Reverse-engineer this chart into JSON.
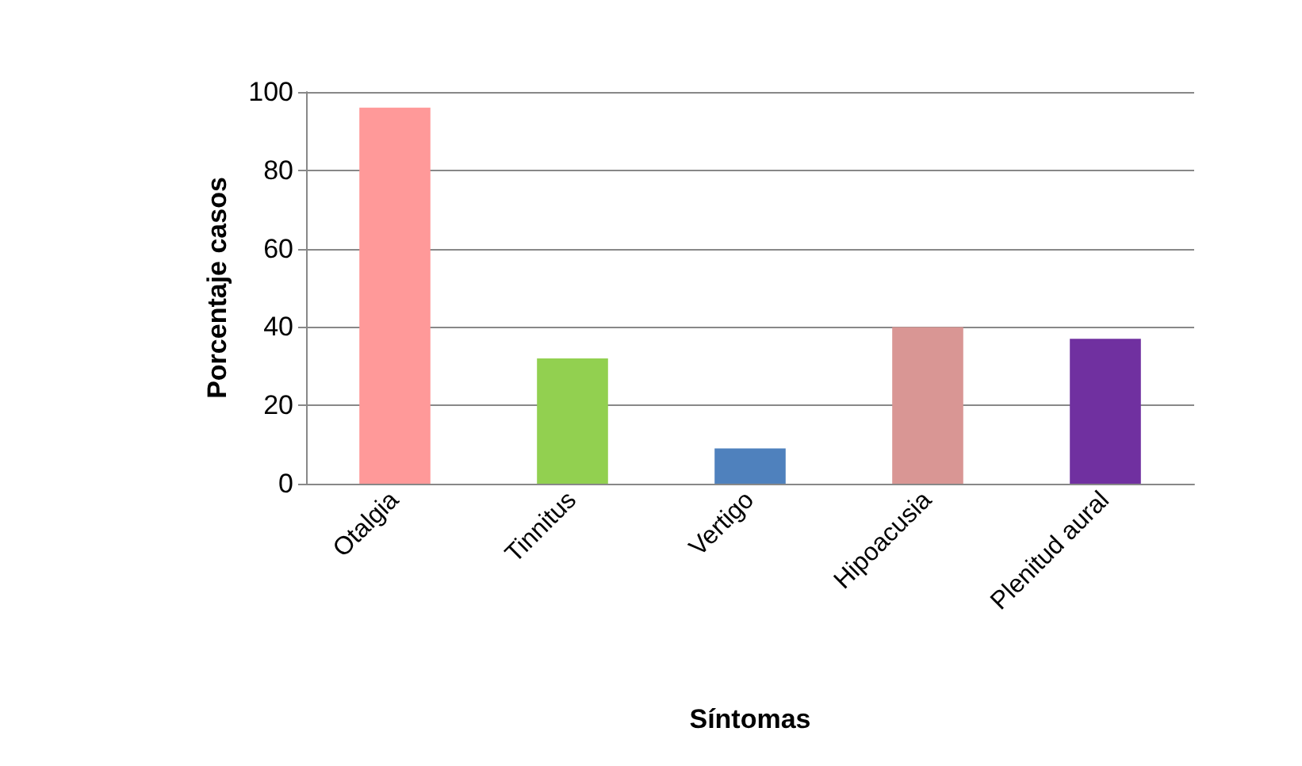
{
  "chart_data": {
    "type": "bar",
    "xlabel": "Síntomas",
    "ylabel": "Porcentaje casos",
    "categories": [
      "Otalgia",
      "Tinnitus",
      "Vertigo",
      "Hipoacusia",
      "Plenitud aural"
    ],
    "values": [
      96,
      32,
      9,
      40,
      37
    ],
    "colors": [
      "#ff9999",
      "#92d050",
      "#4f81bd",
      "#d99694",
      "#7030a0"
    ],
    "ylim": [
      0,
      100
    ],
    "yticks": [
      0,
      20,
      40,
      60,
      80,
      100
    ],
    "grid": "y"
  }
}
